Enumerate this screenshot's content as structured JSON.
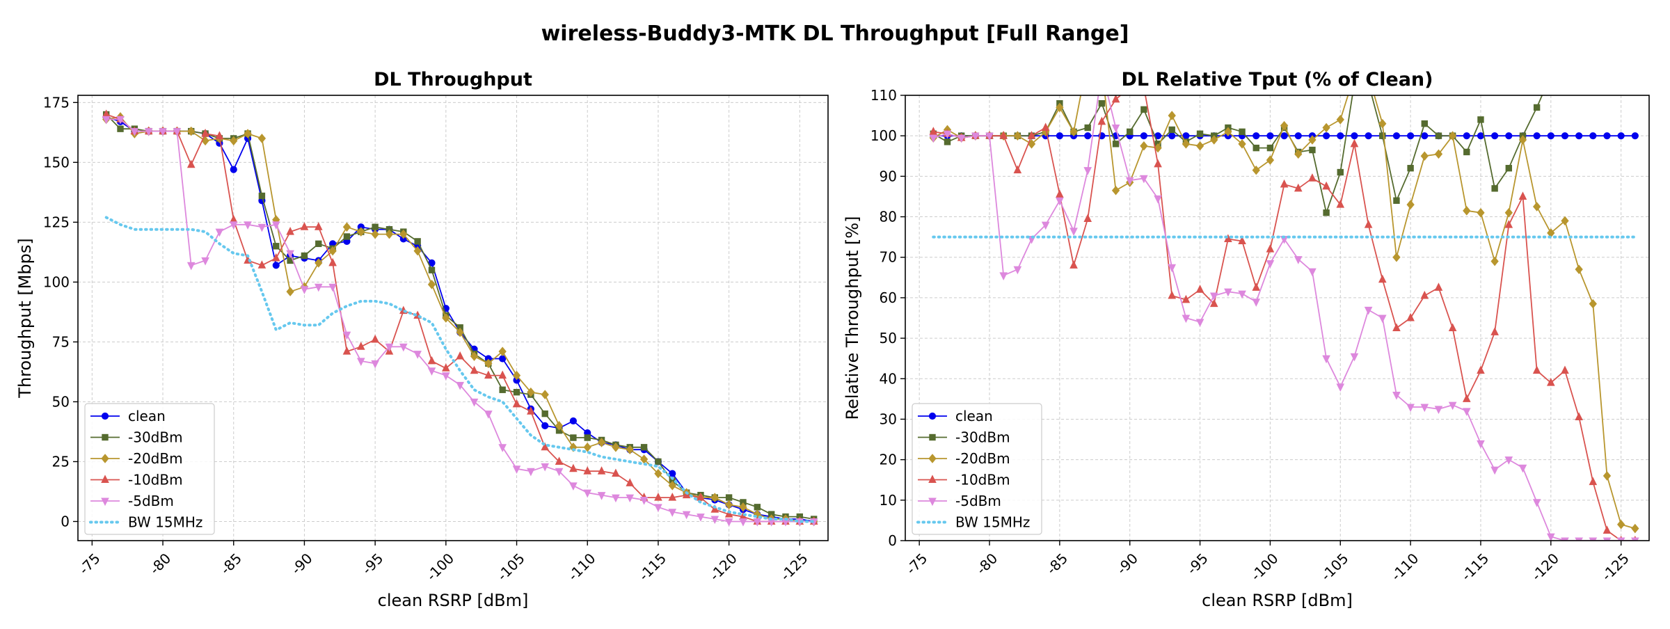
{
  "figure": {
    "suptitle": "wireless-Buddy3-MTK DL Throughput [Full Range]"
  },
  "legend_labels": [
    "clean",
    "-30dBm",
    "-20dBm",
    "-10dBm",
    "-5dBm",
    "BW 15MHz"
  ],
  "colors": {
    "clean": "#0000ee",
    "-30dBm": "#556b2f",
    "-20dBm": "#b8962e",
    "-10dBm": "#d9534f",
    "-5dBm": "#dd88dd",
    "BW 15MHz": "#66c8ee"
  },
  "markers": {
    "clean": "circle",
    "-30dBm": "square",
    "-20dBm": "diamond",
    "-10dBm": "triangle-up",
    "-5dBm": "triangle-down",
    "BW 15MHz": "none"
  },
  "chart_data": [
    {
      "type": "line",
      "title": "DL Throughput",
      "xlabel": "clean RSRP [dBm]",
      "ylabel": "Throughput [Mbps]",
      "xlim": [
        -74,
        -127
      ],
      "ylim": [
        -8,
        178
      ],
      "x_ticks": [
        -75,
        -80,
        -85,
        -90,
        -95,
        -100,
        -105,
        -110,
        -115,
        -120,
        -125
      ],
      "x_tick_labels": [
        "-75",
        "-80",
        "-85",
        "-90",
        "-95",
        "-100",
        "-105",
        "-110",
        "-115",
        "-120",
        "-125"
      ],
      "y_ticks": [
        0,
        25,
        50,
        75,
        100,
        125,
        150,
        175
      ],
      "y_tick_labels": [
        "0",
        "25",
        "50",
        "75",
        "100",
        "125",
        "150",
        "175"
      ],
      "grid": true,
      "legend_position": "lower-left",
      "x": [
        -76,
        -77,
        -78,
        -79,
        -80,
        -81,
        -82,
        -83,
        -84,
        -85,
        -86,
        -87,
        -88,
        -89,
        -90,
        -91,
        -92,
        -93,
        -94,
        -95,
        -96,
        -97,
        -98,
        -99,
        -100,
        -101,
        -102,
        -103,
        -104,
        -105,
        -106,
        -107,
        -108,
        -109,
        -110,
        -111,
        -112,
        -113,
        -114,
        -115,
        -116,
        -117,
        -118,
        -119,
        -120,
        -121,
        -122,
        -123,
        -124,
        -125,
        -126
      ],
      "series": [
        {
          "name": "clean",
          "values": [
            169,
            167,
            163,
            163,
            163,
            163,
            163,
            162,
            158,
            147,
            160,
            134,
            107,
            111,
            110,
            109,
            116,
            117,
            123,
            122,
            122,
            118,
            115,
            108,
            89,
            79,
            72,
            68,
            68,
            59,
            47,
            40,
            39,
            42,
            37,
            33,
            32,
            30,
            30,
            25,
            20,
            12,
            10,
            9,
            7,
            5,
            3,
            2,
            1,
            1,
            0
          ]
        },
        {
          "name": "-30dBm",
          "values": [
            170,
            164,
            164,
            163,
            163,
            163,
            163,
            162,
            160,
            160,
            162,
            136,
            115,
            109,
            111,
            116,
            114,
            119,
            121,
            123,
            122,
            121,
            117,
            105,
            86,
            81,
            70,
            66,
            55,
            54,
            53,
            45,
            38,
            35,
            35,
            34,
            32,
            31,
            31,
            25,
            17,
            12,
            11,
            10,
            10,
            8,
            6,
            3,
            2,
            2,
            1
          ]
        },
        {
          "name": "-20dBm",
          "values": [
            168,
            169,
            162,
            163,
            163,
            163,
            163,
            159,
            160,
            159,
            162,
            160,
            126,
            96,
            98,
            108,
            113,
            123,
            121,
            120,
            120,
            120,
            113,
            99,
            85,
            79,
            69,
            66,
            71,
            61,
            54,
            53,
            40,
            31,
            31,
            33,
            31,
            30,
            26,
            20,
            15,
            12,
            10,
            10,
            7,
            6,
            3,
            1,
            1,
            0,
            0
          ]
        },
        {
          "name": "-10dBm",
          "values": [
            170,
            168,
            163,
            163,
            163,
            163,
            149,
            162,
            161,
            126,
            109,
            107,
            110,
            121,
            123,
            123,
            108,
            71,
            73,
            76,
            71,
            88,
            86,
            67,
            64,
            69,
            63,
            61,
            61,
            49,
            46,
            31,
            25,
            22,
            21,
            21,
            20,
            16,
            10,
            10,
            10,
            11,
            10,
            5,
            3,
            2,
            0,
            0,
            0,
            0,
            0
          ]
        },
        {
          "name": "-5dBm",
          "values": [
            168,
            168,
            163,
            163,
            163,
            163,
            107,
            109,
            121,
            124,
            124,
            123,
            124,
            112,
            97,
            98,
            98,
            78,
            67,
            66,
            73,
            73,
            70,
            63,
            61,
            57,
            50,
            45,
            31,
            22,
            21,
            23,
            21,
            15,
            12,
            11,
            10,
            10,
            9,
            6,
            4,
            3,
            2,
            1,
            0,
            0,
            0,
            0,
            0,
            0,
            0
          ]
        },
        {
          "name": "BW 15MHz",
          "style": "dotted",
          "values": [
            127,
            124,
            122,
            122,
            122,
            122,
            122,
            121,
            116,
            112,
            111,
            96,
            80,
            83,
            82,
            82,
            87,
            90,
            92,
            92,
            91,
            88,
            86,
            83,
            72,
            63,
            55,
            52,
            50,
            43,
            36,
            32,
            31,
            30,
            29,
            27,
            26,
            25,
            24,
            23,
            18,
            12,
            8,
            6,
            4,
            3,
            2,
            1,
            1,
            0,
            0
          ]
        }
      ]
    },
    {
      "type": "line",
      "title": "DL Relative Tput (% of Clean)",
      "xlabel": "clean RSRP [dBm]",
      "ylabel": "Relative Throughput [%]",
      "xlim": [
        -74,
        -127
      ],
      "ylim": [
        0,
        110
      ],
      "x_ticks": [
        -75,
        -80,
        -85,
        -90,
        -95,
        -100,
        -105,
        -110,
        -115,
        -120,
        -125
      ],
      "x_tick_labels": [
        "-75",
        "-80",
        "-85",
        "-90",
        "-95",
        "-100",
        "-105",
        "-110",
        "-115",
        "-120",
        "-125"
      ],
      "y_ticks": [
        0,
        10,
        20,
        30,
        40,
        50,
        60,
        70,
        80,
        90,
        100,
        110
      ],
      "y_tick_labels": [
        "0",
        "10",
        "20",
        "30",
        "40",
        "50",
        "60",
        "70",
        "80",
        "90",
        "100",
        "110"
      ],
      "grid": true,
      "legend_position": "lower-left",
      "x": [
        -76,
        -77,
        -78,
        -79,
        -80,
        -81,
        -82,
        -83,
        -84,
        -85,
        -86,
        -87,
        -88,
        -89,
        -90,
        -91,
        -92,
        -93,
        -94,
        -95,
        -96,
        -97,
        -98,
        -99,
        -100,
        -101,
        -102,
        -103,
        -104,
        -105,
        -106,
        -107,
        -108,
        -109,
        -110,
        -111,
        -112,
        -113,
        -114,
        -115,
        -116,
        -117,
        -118,
        -119,
        -120,
        -121,
        -122,
        -123,
        -124,
        -125,
        -126
      ],
      "series": [
        {
          "name": "clean",
          "values": [
            100,
            100,
            100,
            100,
            100,
            100,
            100,
            100,
            100,
            100,
            100,
            100,
            100,
            100,
            100,
            100,
            100,
            100,
            100,
            100,
            100,
            100,
            100,
            100,
            100,
            100,
            100,
            100,
            100,
            100,
            100,
            100,
            100,
            100,
            100,
            100,
            100,
            100,
            100,
            100,
            100,
            100,
            100,
            100,
            100,
            100,
            100,
            100,
            100,
            100,
            100
          ]
        },
        {
          "name": "-30dBm",
          "values": [
            100.5,
            98.5,
            100,
            100,
            100,
            100,
            100,
            100,
            101,
            108,
            101,
            102,
            108,
            98,
            101,
            106.5,
            98,
            101.5,
            98.5,
            100.5,
            100,
            102,
            101,
            97,
            97,
            102,
            96,
            96.5,
            81,
            91,
            113,
            113,
            100,
            84,
            92,
            103,
            100,
            100,
            96,
            104,
            87,
            92,
            100,
            107,
            115,
            115,
            115,
            115,
            115,
            115,
            115
          ]
        },
        {
          "name": "-20dBm",
          "values": [
            99.5,
            101.5,
            99.5,
            100,
            100,
            100,
            100,
            98,
            101,
            107,
            101,
            119,
            117,
            86.5,
            88.5,
            97.5,
            97,
            105,
            98,
            97.5,
            99,
            101,
            98,
            91.5,
            94,
            102.5,
            95.5,
            99,
            102,
            104,
            115,
            115,
            103,
            70,
            83,
            95,
            95.5,
            100,
            81.5,
            81,
            69,
            81,
            99,
            82.5,
            76,
            79,
            67,
            58.5,
            16,
            4,
            3
          ]
        },
        {
          "name": "-10dBm",
          "values": [
            101,
            100.5,
            99.5,
            100,
            100,
            100,
            91.5,
            100,
            102,
            85.5,
            68,
            79.5,
            103.5,
            109,
            112,
            112,
            93,
            60.5,
            59.5,
            62,
            58.5,
            74.5,
            74,
            62.5,
            72,
            88,
            87,
            89.5,
            87.5,
            83,
            98,
            78,
            64.5,
            52.5,
            55,
            60.5,
            62.5,
            52.5,
            35,
            42,
            51.5,
            78,
            85,
            42,
            39,
            42,
            30.5,
            14.5,
            2.5,
            0,
            0
          ]
        },
        {
          "name": "-5dBm",
          "values": [
            99.5,
            100.5,
            99.5,
            100,
            100,
            65.5,
            67,
            74.5,
            78,
            84,
            76.5,
            91.5,
            116,
            102,
            89,
            89.5,
            84.5,
            67.5,
            55,
            54,
            60.5,
            61.5,
            61,
            59,
            68.5,
            74.5,
            69.5,
            66.5,
            45,
            38,
            45.5,
            57,
            55,
            36,
            33,
            33,
            32.5,
            33.5,
            32,
            24,
            17.5,
            20,
            18,
            9.5,
            1,
            0,
            0,
            0,
            0,
            0,
            0
          ]
        },
        {
          "name": "BW 15MHz",
          "style": "dotted",
          "values": [
            75,
            75,
            75,
            75,
            75,
            75,
            75,
            75,
            75,
            75,
            75,
            75,
            75,
            75,
            75,
            75,
            75,
            75,
            75,
            75,
            75,
            75,
            75,
            75,
            75,
            75,
            75,
            75,
            75,
            75,
            75,
            75,
            75,
            75,
            75,
            75,
            75,
            75,
            75,
            75,
            75,
            75,
            75,
            75,
            75,
            75,
            75,
            75,
            75,
            75,
            75
          ]
        }
      ]
    }
  ]
}
